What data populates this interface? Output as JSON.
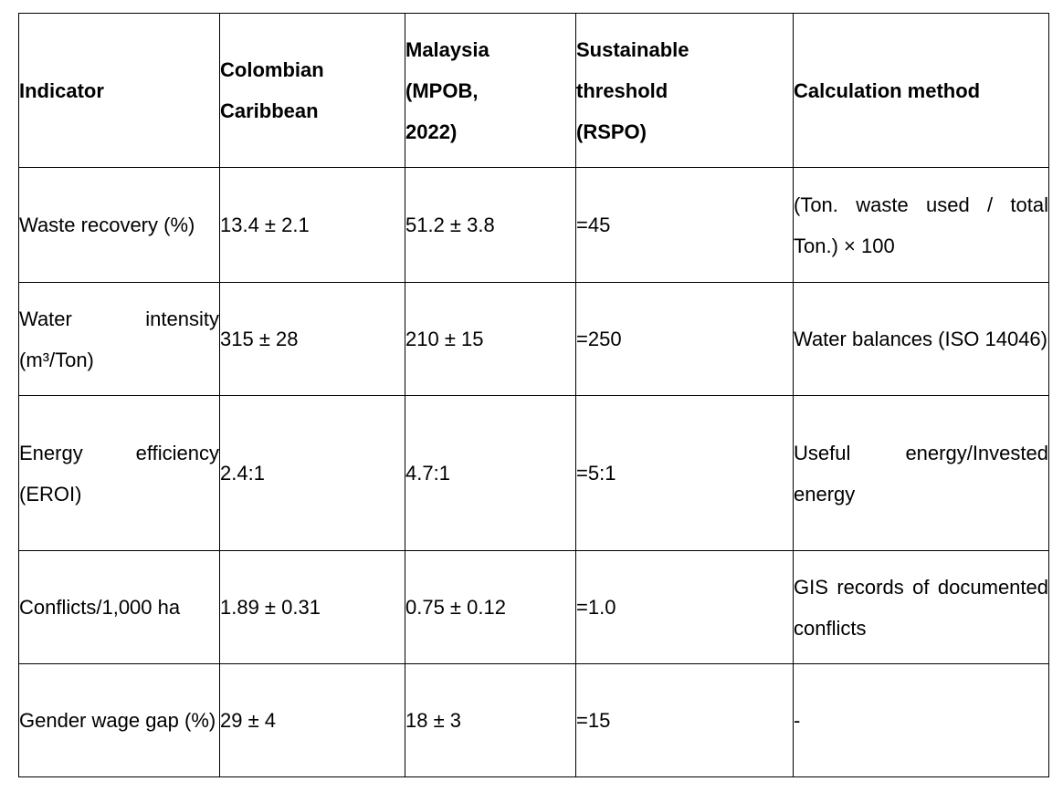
{
  "table": {
    "headers": [
      "Indicator",
      "Colombian Caribbean",
      "Malaysia (MPOB, 2022)",
      "Sustainable threshold (RSPO)",
      "Calculation method"
    ],
    "rows": [
      {
        "indicator": "Waste recovery (%)",
        "colombian_caribbean": "13.4 ± 2.1",
        "malaysia": "51.2 ± 3.8",
        "threshold": "=45",
        "method": "(Ton. waste used / total Ton.) × 100"
      },
      {
        "indicator": "Water intensity (m³/Ton)",
        "colombian_caribbean": "315 ± 28",
        "malaysia": "210 ± 15",
        "threshold": "=250",
        "method": "Water balances (ISO 14046)"
      },
      {
        "indicator": "Energy efficiency (EROI)",
        "colombian_caribbean": "2.4:1",
        "malaysia": "4.7:1",
        "threshold": "=5:1",
        "method": "Useful energy/Invested energy"
      },
      {
        "indicator": "Conflicts/1,000 ha",
        "colombian_caribbean": "1.89 ± 0.31",
        "malaysia": "0.75 ± 0.12",
        "threshold": "=1.0",
        "method": "GIS records of documented conflicts"
      },
      {
        "indicator": "Gender wage gap (%)",
        "colombian_caribbean": "29 ± 4",
        "malaysia": "18 ± 3",
        "threshold": "=15",
        "method": "-"
      }
    ]
  }
}
